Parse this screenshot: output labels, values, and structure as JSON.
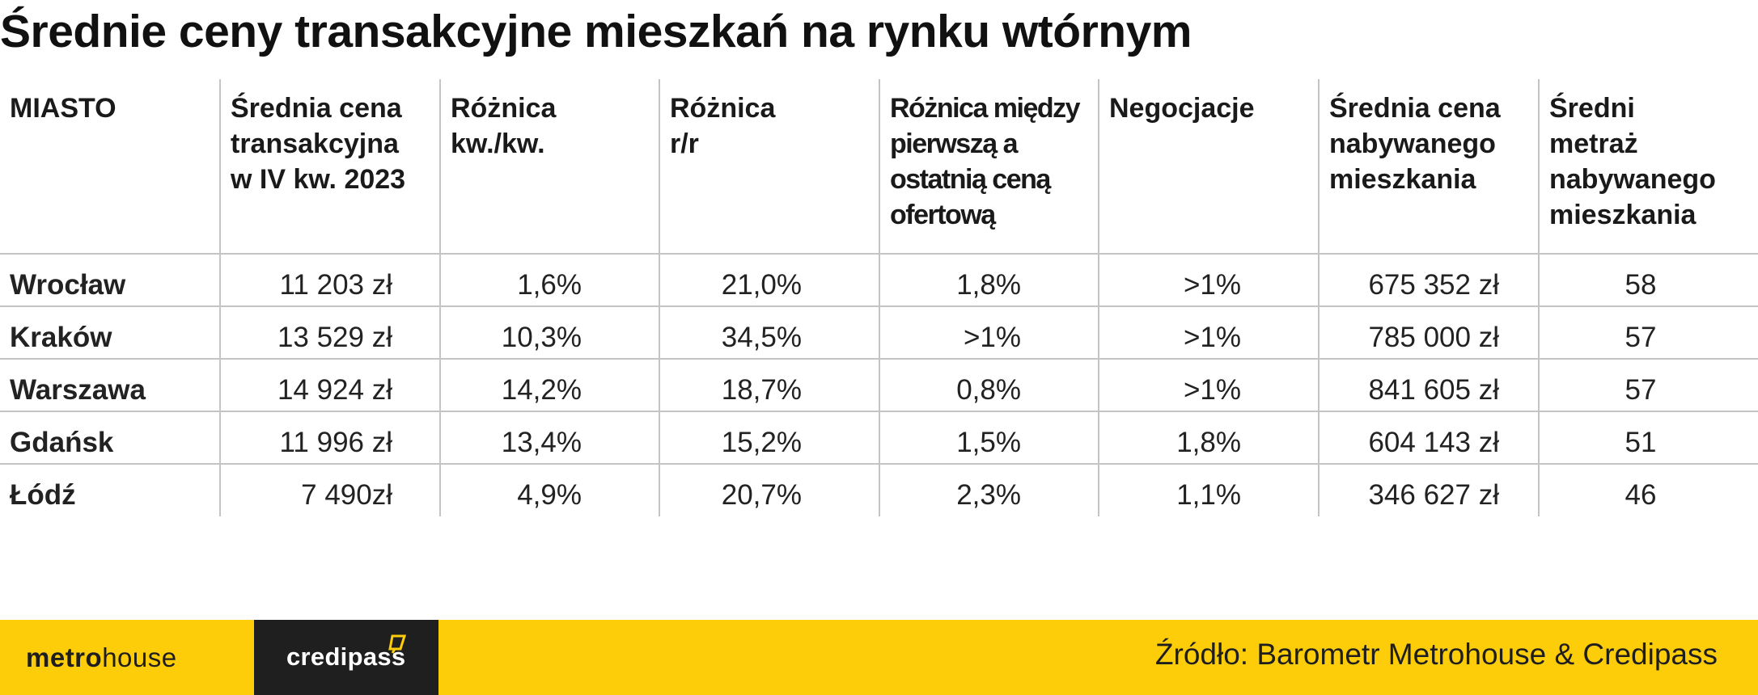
{
  "title": "Średnie ceny transakcyjne mieszkań na rynku wtórnym",
  "table": {
    "headers": [
      [
        "MIASTO"
      ],
      [
        "Średnia cena",
        "transakcyjna",
        "w IV kw. 2023"
      ],
      [
        "Różnica",
        "kw./kw."
      ],
      [
        "Różnica",
        "r/r"
      ],
      [
        "Różnica między",
        "pierwszą a",
        "ostatnią ceną",
        "ofertową"
      ],
      [
        "Negocjacje"
      ],
      [
        "Średnia cena",
        "nabywanego",
        "mieszkania"
      ],
      [
        "Średni",
        "metraż",
        "nabywanego",
        "mieszkania"
      ]
    ],
    "rows": [
      [
        "Wrocław",
        "11 203 zł",
        "1,6%",
        "21,0%",
        "1,8%",
        ">1%",
        "675 352 zł",
        "58"
      ],
      [
        "Kraków",
        "13 529 zł",
        "10,3%",
        "34,5%",
        ">1%",
        ">1%",
        "785 000 zł",
        "57"
      ],
      [
        "Warszawa",
        "14 924 zł",
        "14,2%",
        "18,7%",
        "0,8%",
        ">1%",
        "841 605 zł",
        "57"
      ],
      [
        "Gdańsk",
        "11 996 zł",
        "13,4%",
        "15,2%",
        "1,5%",
        "1,8%",
        "604 143 zł",
        "51"
      ],
      [
        "Łódź",
        "7 490zł",
        "4,9%",
        "20,7%",
        "2,3%",
        "1,1%",
        "346 627 zł",
        "46"
      ]
    ]
  },
  "footer": {
    "logo_metro_bold": "metro",
    "logo_metro_light": "house",
    "logo_credipass": "credipass",
    "source": "Źródło: Barometr Metrohouse & Credipass",
    "colors": {
      "band": "#fecd0a",
      "credipass_box": "#1f1f1f"
    }
  }
}
